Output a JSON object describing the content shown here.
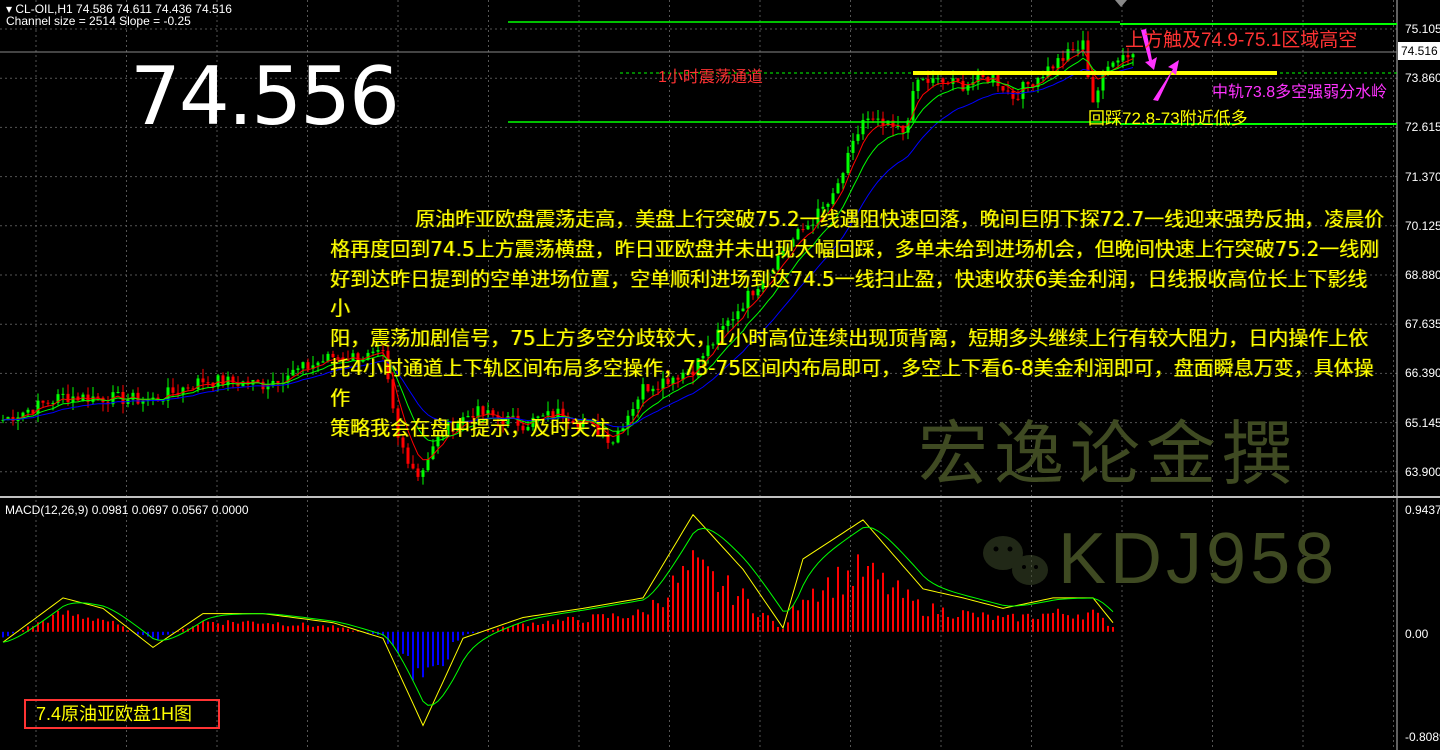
{
  "header": {
    "symbol_line": "CL-OIL,H1  74.586 74.611 74.436 74.516",
    "channel_line": "Channel size = 2514 Slope = -0.25"
  },
  "big_price": "74.556",
  "annotations": {
    "channel_label": "1小时震荡通道",
    "upper": "上方触及74.9-75.1区域高空",
    "middle": "中轨73.8多空强弱分水岭",
    "lower": "回踩72.8-73附近低多"
  },
  "commentary": [
    "原油昨亚欧盘震荡走高，美盘上行突破75.2一线遇阻快速回落，晚间巨阴下探72.7一线迎来强势反抽，凌晨价",
    "格再度回到74.5上方震荡横盘，昨日亚欧盘并未出现大幅回踩，多单未给到进场机会，但晚间快速上行突破75.2一线刚",
    "好到达昨日提到的空单进场位置，空单顺利进场到达74.5一线扫止盈，快速收获6美金利润，日线报收高位长上下影线小",
    "阳，震荡加剧信号，75上方多空分歧较大，1小时高位连续出现顶背离，短期多头继续上行有较大阻力，日内操作上依",
    "托4小时通道上下轨区间布局多空操作，73-75区间内布局即可，多空上下看6-8美金利润即可，盘面瞬息万变，具体操作",
    "策略我会在盘中提示，及时关注"
  ],
  "watermark": {
    "author": "宏逸论金撰",
    "wechat_id": "KDJ958"
  },
  "caption": "7.4原油亚欧盘1H图",
  "macd": {
    "label": "MACD(12,26,9) 0.0981 0.0697 0.0567 0.0000"
  },
  "colors": {
    "up": "#00ff00",
    "down": "#ff0000",
    "ma_fast": "#ff0000",
    "ma_mid": "#00ff00",
    "ma_slow": "#0000ff",
    "channel": "#00ff00",
    "midline": "#ffff00",
    "macd_hist_pos": "#ff0000",
    "macd_hist_neg": "#0000ff",
    "macd_line": "#ffff00",
    "signal_line": "#00ff00",
    "arrow": "#ff33ff"
  },
  "chart_data": [
    {
      "type": "candlestick",
      "title": "CL-OIL,H1",
      "y_ticks": [
        "75.105",
        "73.860",
        "72.615",
        "71.370",
        "70.125",
        "68.880",
        "67.635",
        "66.390",
        "65.145",
        "63.900"
      ],
      "ylim": [
        63.9,
        75.105
      ],
      "current_price": "74.516",
      "channel": {
        "upper": 75.1,
        "middle": 73.86,
        "lower": 72.62
      },
      "close_path": {
        "bar": [
          0,
          12,
          30,
          40,
          52,
          66,
          76,
          79,
          83,
          88,
          94,
          104,
          112,
          122,
          128,
          138,
          144,
          156,
          166,
          172,
          180,
          183,
          192,
          198,
          202,
          210,
          216,
          218,
          222,
          226
        ],
        "close": [
          65.2,
          65.8,
          65.7,
          66.2,
          66.1,
          66.8,
          66.8,
          64.7,
          63.8,
          64.9,
          65.4,
          65.1,
          65.4,
          64.7,
          66.0,
          66.5,
          67.5,
          69.5,
          70.8,
          72.8,
          72.5,
          73.8,
          73.7,
          73.9,
          73.4,
          74.2,
          74.7,
          73.3,
          74.4,
          74.5
        ]
      },
      "grid": true
    },
    {
      "type": "line",
      "title": "MACD(12,26,9)",
      "y_ticks": [
        "0.9437",
        "0.00",
        "-0.8089"
      ],
      "ylim": [
        -0.8089,
        0.9437
      ],
      "macd_path": {
        "bar": [
          0,
          12,
          20,
          30,
          40,
          52,
          66,
          76,
          84,
          92,
          104,
          116,
          128,
          138,
          148,
          156,
          160,
          172,
          184,
          192,
          200,
          210,
          218,
          222
        ],
        "value": [
          -0.08,
          0.26,
          0.18,
          -0.12,
          0.14,
          0.14,
          0.07,
          -0.05,
          -0.72,
          -0.05,
          0.11,
          0.18,
          0.26,
          0.9,
          0.48,
          0.03,
          0.56,
          0.86,
          0.33,
          0.26,
          0.18,
          0.26,
          0.26,
          0.07
        ]
      }
    }
  ]
}
